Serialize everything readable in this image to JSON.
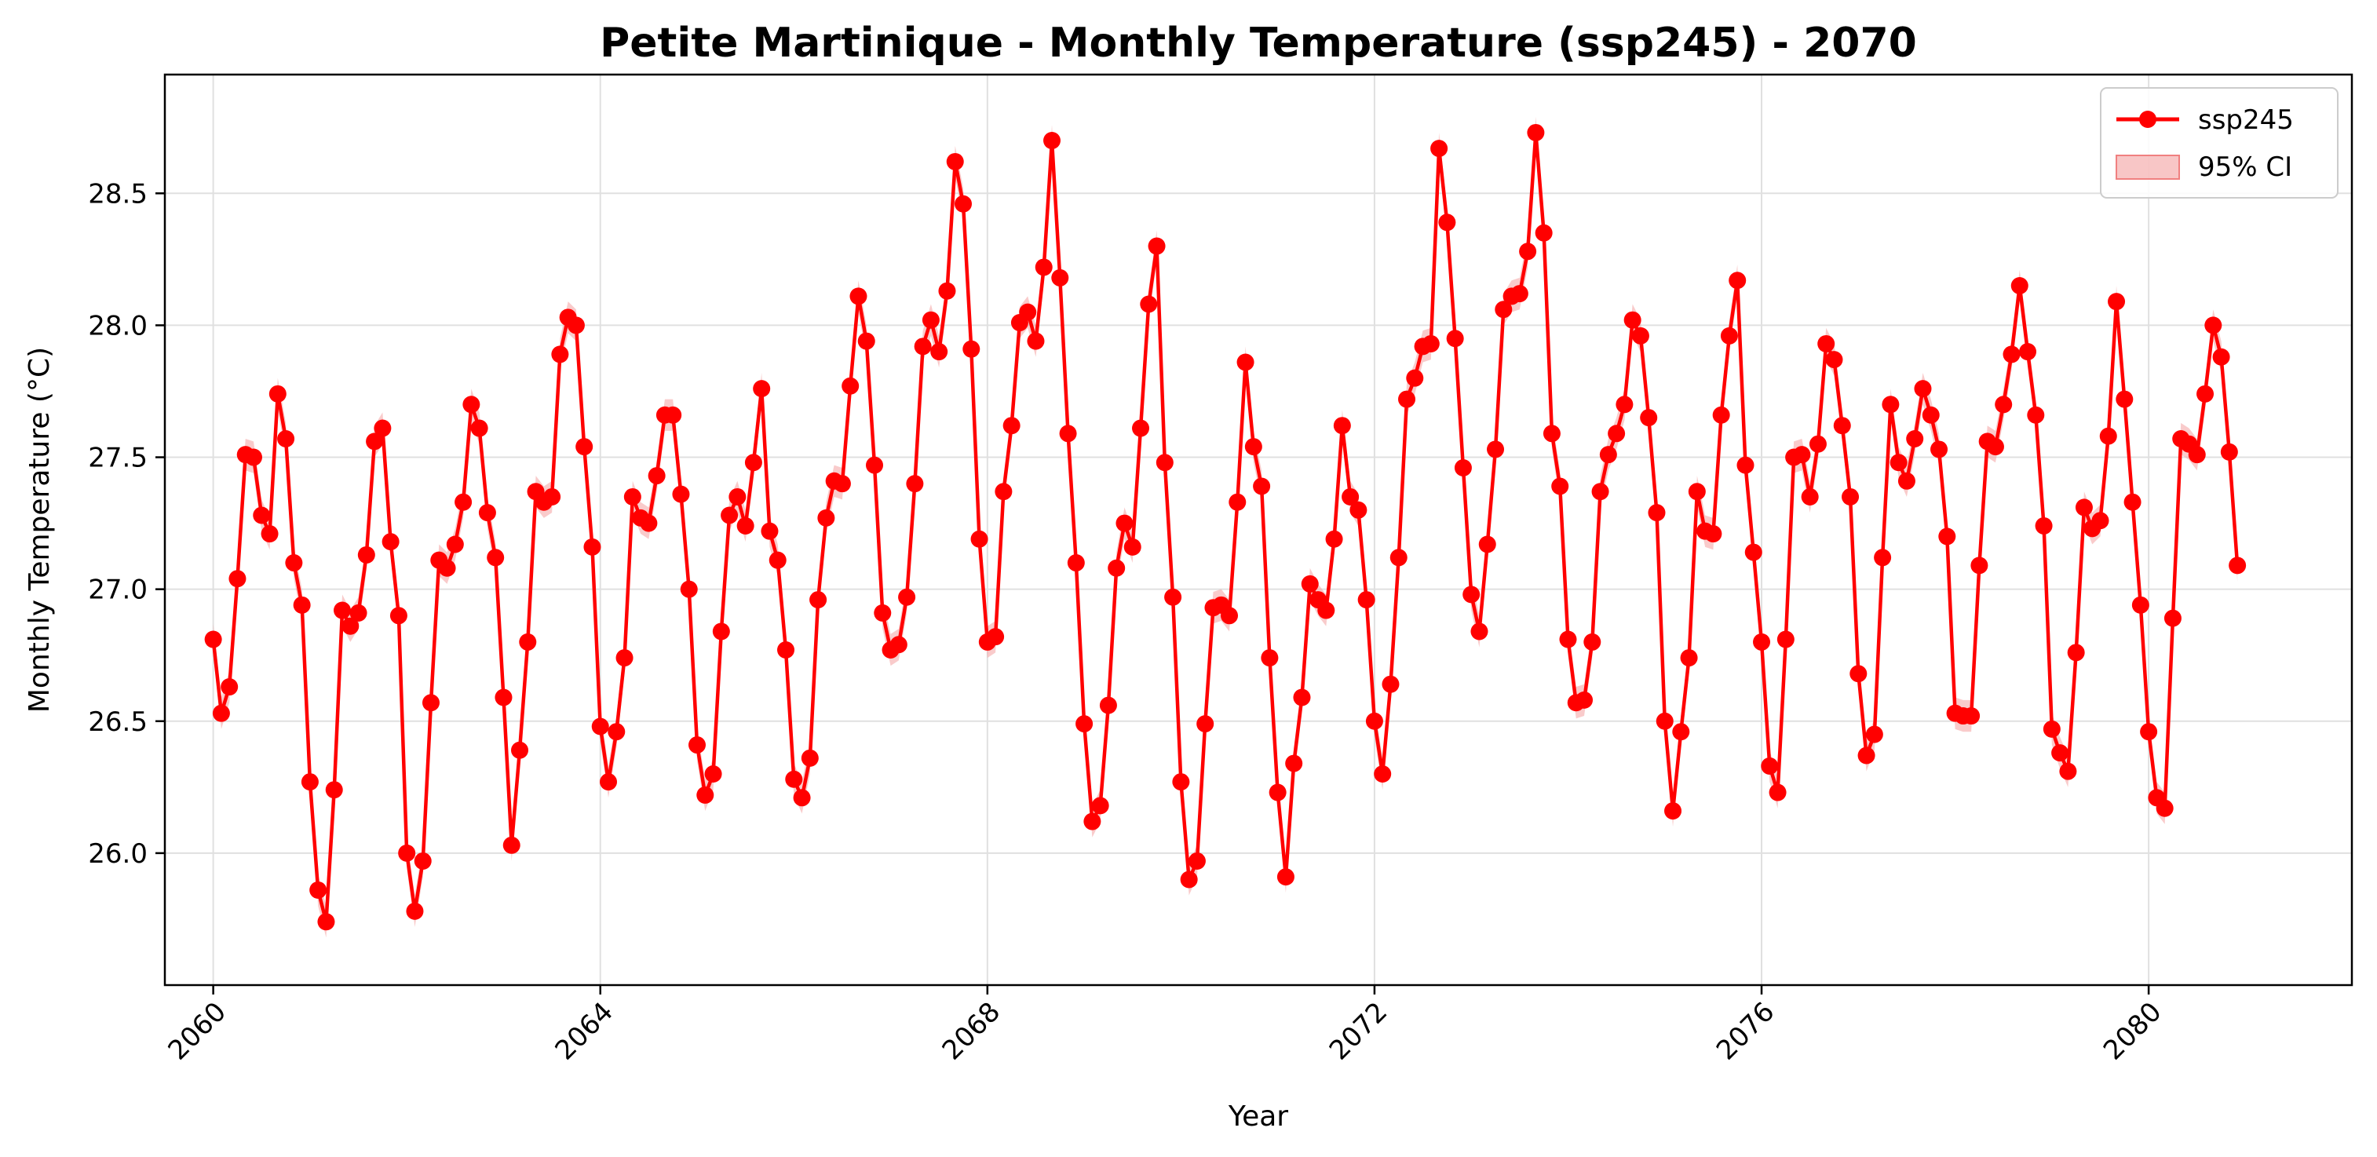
{
  "chart_data": {
    "type": "line",
    "title": "Petite Martinique - Monthly Temperature (ssp245) - 2070",
    "xlabel": "Year",
    "ylabel": "Monthly Temperature (°C)",
    "xlim": [
      2059.5,
      2082.1
    ],
    "ylim": [
      25.5,
      28.95
    ],
    "x_ticks": [
      2060,
      2064,
      2068,
      2072,
      2076,
      2080
    ],
    "x_tick_labels": [
      "2060",
      "2064",
      "2068",
      "2072",
      "2076",
      "2080"
    ],
    "y_ticks": [
      26.0,
      26.5,
      27.0,
      27.5,
      28.0,
      28.5
    ],
    "y_tick_labels": [
      "26.0",
      "26.5",
      "27.0",
      "27.5",
      "28.0",
      "28.5"
    ],
    "grid": true,
    "legend_position": "top-right",
    "legend": [
      "ssp245",
      "95% CI"
    ],
    "colors": {
      "series": "#ff0000",
      "ci_band": "#f4a0a0"
    },
    "x_start_year": 2060,
    "months_per_year": 12,
    "series": [
      {
        "name": "ssp245",
        "values": [
          26.81,
          26.53,
          26.63,
          27.04,
          27.51,
          27.5,
          27.28,
          27.21,
          27.74,
          27.57,
          27.1,
          26.94,
          26.27,
          25.86,
          25.74,
          26.24,
          26.92,
          26.86,
          26.91,
          27.13,
          27.56,
          27.61,
          27.18,
          26.9,
          26.0,
          25.78,
          25.97,
          26.57,
          27.11,
          27.08,
          27.17,
          27.33,
          27.7,
          27.61,
          27.29,
          27.12,
          26.59,
          26.03,
          26.39,
          26.8,
          27.37,
          27.33,
          27.35,
          27.89,
          28.03,
          28.0,
          27.54,
          27.16,
          26.48,
          26.27,
          26.46,
          26.74,
          27.35,
          27.27,
          27.25,
          27.43,
          27.66,
          27.66,
          27.36,
          27.0,
          26.41,
          26.22,
          26.3,
          26.84,
          27.28,
          27.35,
          27.24,
          27.48,
          27.76,
          27.22,
          27.11,
          26.77,
          26.28,
          26.21,
          26.36,
          26.96,
          27.27,
          27.41,
          27.4,
          27.77,
          28.11,
          27.94,
          27.47,
          26.91,
          26.77,
          26.79,
          26.97,
          27.4,
          27.92,
          28.02,
          27.9,
          28.13,
          28.62,
          28.46,
          27.91,
          27.19,
          26.8,
          26.82,
          27.37,
          27.62,
          28.01,
          28.05,
          27.94,
          28.22,
          28.7,
          28.18,
          27.59,
          27.1,
          26.49,
          26.12,
          26.18,
          26.56,
          27.08,
          27.25,
          27.16,
          27.61,
          28.08,
          28.3,
          27.48,
          26.97,
          26.27,
          25.9,
          25.97,
          26.49,
          26.93,
          26.94,
          26.9,
          27.33,
          27.86,
          27.54,
          27.39,
          26.74,
          26.23,
          25.91,
          26.34,
          26.59,
          27.02,
          26.96,
          26.92,
          27.19,
          27.62,
          27.35,
          27.3,
          26.96,
          26.5,
          26.3,
          26.64,
          27.12,
          27.72,
          27.8,
          27.92,
          27.93,
          28.67,
          28.39,
          27.95,
          27.46,
          26.98,
          26.84,
          27.17,
          27.53,
          28.06,
          28.11,
          28.12,
          28.28,
          28.73,
          28.35,
          27.59,
          27.39,
          26.81,
          26.57,
          26.58,
          26.8,
          27.37,
          27.51,
          27.59,
          27.7,
          28.02,
          27.96,
          27.65,
          27.29,
          26.5,
          26.16,
          26.46,
          26.74,
          27.37,
          27.22,
          27.21,
          27.66,
          27.96,
          28.17,
          27.47,
          27.14,
          26.8,
          26.33,
          26.23,
          26.81,
          27.5,
          27.51,
          27.35,
          27.55,
          27.93,
          27.87,
          27.62,
          27.35,
          26.68,
          26.37,
          26.45,
          27.12,
          27.7,
          27.48,
          27.41,
          27.57,
          27.76,
          27.66,
          27.53,
          27.2,
          26.53,
          26.52,
          26.52,
          27.09,
          27.56,
          27.54,
          27.7,
          27.89,
          28.15,
          27.9,
          27.66,
          27.24,
          26.47,
          26.38,
          26.31,
          26.76,
          27.31,
          27.23,
          27.26,
          27.58,
          28.09,
          27.72,
          27.33,
          26.94,
          26.46,
          26.21,
          26.17,
          26.89,
          27.57,
          27.55,
          27.51,
          27.74,
          28.0,
          27.88,
          27.52,
          27.09
        ]
      }
    ],
    "ci_halfwidth": 0.06
  }
}
